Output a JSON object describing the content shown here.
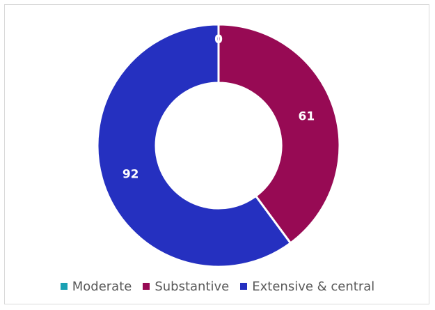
{
  "chart_data": {
    "type": "pie",
    "variant": "donut",
    "categories": [
      "Moderate",
      "Substantive",
      "Extensive & central"
    ],
    "values": [
      0,
      61,
      92
    ],
    "colors": [
      "#1aa1b3",
      "#970a54",
      "#2530c0"
    ],
    "data_labels": [
      "0",
      "61",
      "92"
    ],
    "legend_position": "bottom",
    "title": ""
  }
}
